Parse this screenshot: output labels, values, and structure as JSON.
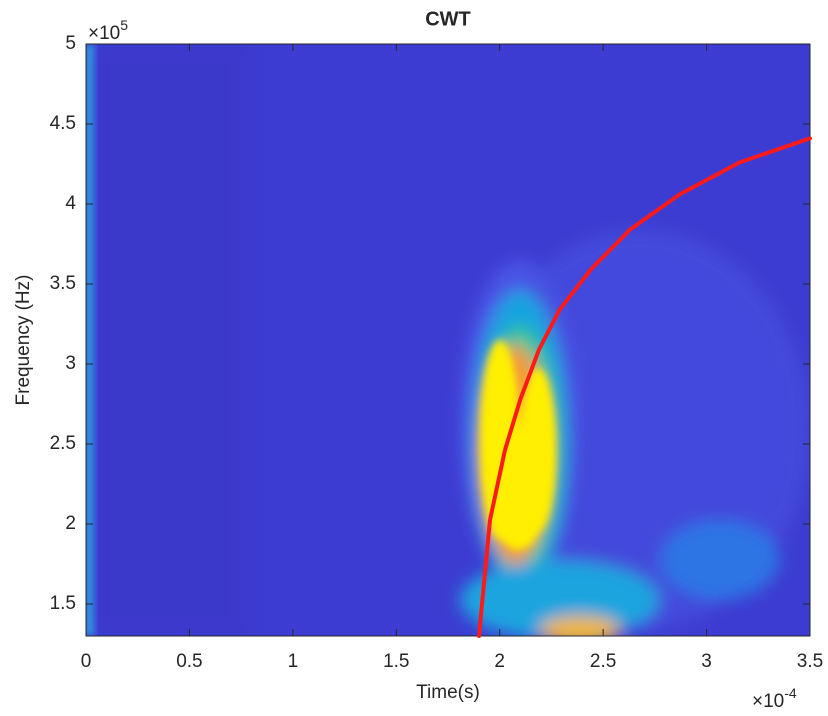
{
  "chart_data": {
    "type": "line",
    "title": "CWT",
    "x_label": "Time(s)",
    "y_label": "Frequency (Hz)",
    "x_multiplier": "×10",
    "x_exponent": "-4",
    "y_multiplier": "×10",
    "y_exponent": "5",
    "x": [
      1.9,
      1.953,
      2.025,
      2.1,
      2.19,
      2.29,
      2.44,
      2.63,
      2.87,
      3.16,
      3.5
    ],
    "values": [
      1.3,
      2.025,
      2.46,
      2.78,
      3.09,
      3.34,
      3.59,
      3.84,
      4.06,
      4.26,
      4.41
    ],
    "color": "#ff1a1a",
    "xlim": [
      0,
      3.5
    ],
    "xticks": [
      0,
      0.5,
      1,
      1.5,
      2,
      2.5,
      3,
      3.5
    ],
    "ylim": [
      1.3,
      5
    ],
    "yticks": [
      1.5,
      2,
      2.5,
      3,
      3.5,
      4,
      4.5,
      5
    ]
  }
}
